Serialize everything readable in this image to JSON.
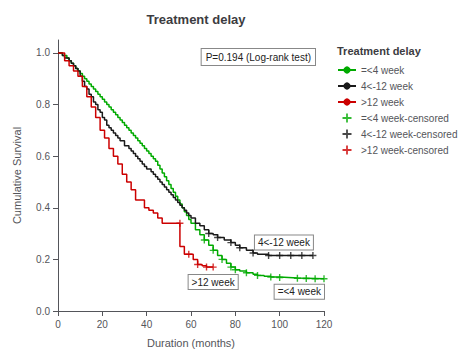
{
  "chart_data": {
    "type": "line",
    "title": "Treatment delay",
    "xlabel": "Duration (months)",
    "ylabel": "Cumulative Survival",
    "legend_title": "Treatment delay",
    "legend": "right",
    "grid": false,
    "xlim": [
      0,
      120
    ],
    "ylim": [
      0.0,
      1.05
    ],
    "xticks": [
      0,
      20,
      40,
      60,
      80,
      100,
      120
    ],
    "yticks": [
      {
        "value": 0.0,
        "label": "0.0"
      },
      0.2,
      0.4,
      0.6,
      0.8,
      {
        "value": 1.0,
        "label": "1.0"
      }
    ],
    "annotations": [
      {
        "text": "P=0.194 (Log-rank test)"
      }
    ],
    "series": [
      {
        "name": "=<4 week",
        "type": "line",
        "line_style": "step",
        "color": "#00aa00",
        "annotation": "=<4 week",
        "x": [
          0,
          2,
          4,
          5,
          6,
          7,
          8,
          9,
          10,
          11,
          12,
          13,
          14,
          15,
          16,
          17,
          18,
          19,
          20,
          21,
          22,
          23,
          24,
          25,
          26,
          27,
          28,
          29,
          30,
          31,
          32,
          33,
          34,
          35,
          36,
          37,
          38,
          39,
          40,
          41,
          42,
          43,
          44,
          45,
          46,
          47,
          48,
          49,
          50,
          51,
          52,
          53,
          54,
          55,
          56,
          57,
          58,
          59,
          60,
          62,
          64,
          66,
          68,
          70,
          72,
          74,
          76,
          78,
          80,
          82,
          85,
          88,
          90,
          93,
          96,
          100,
          104,
          108,
          112,
          116,
          120
        ],
        "values": [
          1.0,
          0.99,
          0.98,
          0.97,
          0.96,
          0.95,
          0.94,
          0.93,
          0.92,
          0.91,
          0.9,
          0.89,
          0.88,
          0.87,
          0.86,
          0.85,
          0.84,
          0.83,
          0.82,
          0.81,
          0.8,
          0.79,
          0.78,
          0.77,
          0.76,
          0.75,
          0.74,
          0.73,
          0.72,
          0.71,
          0.7,
          0.69,
          0.68,
          0.67,
          0.66,
          0.65,
          0.64,
          0.63,
          0.62,
          0.61,
          0.6,
          0.59,
          0.58,
          0.565,
          0.55,
          0.535,
          0.52,
          0.505,
          0.49,
          0.475,
          0.46,
          0.445,
          0.43,
          0.415,
          0.4,
          0.385,
          0.37,
          0.355,
          0.34,
          0.315,
          0.295,
          0.275,
          0.255,
          0.235,
          0.215,
          0.2,
          0.185,
          0.17,
          0.16,
          0.155,
          0.148,
          0.142,
          0.138,
          0.135,
          0.132,
          0.13,
          0.128,
          0.127,
          0.126,
          0.125,
          0.125
        ]
      },
      {
        "name": "4<-12 week",
        "type": "line",
        "line_style": "step",
        "color": "#1a1a1a",
        "annotation": "4<-12 week",
        "x": [
          0,
          2,
          3,
          5,
          6,
          7,
          8,
          9,
          10,
          11,
          12,
          13,
          14,
          15,
          16,
          17,
          18,
          19,
          20,
          21,
          22,
          23,
          24,
          25,
          26,
          27,
          28,
          30,
          32,
          33,
          34,
          35,
          36,
          37,
          38,
          39,
          40,
          42,
          43,
          44,
          45,
          46,
          47,
          48,
          49,
          50,
          51,
          52,
          53,
          54,
          55,
          56,
          57,
          58,
          59,
          60,
          62,
          64,
          66,
          68,
          70,
          72,
          75,
          78,
          80,
          82,
          85,
          88,
          90,
          95,
          100,
          105,
          110,
          115
        ],
        "values": [
          1.0,
          0.99,
          0.98,
          0.97,
          0.96,
          0.95,
          0.94,
          0.93,
          0.91,
          0.89,
          0.87,
          0.86,
          0.84,
          0.83,
          0.81,
          0.8,
          0.78,
          0.77,
          0.75,
          0.74,
          0.72,
          0.71,
          0.7,
          0.69,
          0.68,
          0.67,
          0.66,
          0.64,
          0.63,
          0.62,
          0.61,
          0.6,
          0.59,
          0.58,
          0.57,
          0.56,
          0.55,
          0.54,
          0.53,
          0.52,
          0.51,
          0.5,
          0.49,
          0.48,
          0.47,
          0.46,
          0.45,
          0.44,
          0.43,
          0.42,
          0.41,
          0.4,
          0.39,
          0.38,
          0.37,
          0.36,
          0.34,
          0.33,
          0.315,
          0.3,
          0.295,
          0.285,
          0.275,
          0.265,
          0.255,
          0.245,
          0.235,
          0.225,
          0.22,
          0.215,
          0.215,
          0.215,
          0.215,
          0.215
        ]
      },
      {
        "name": ">12 week",
        "type": "line",
        "line_style": "step",
        "color": "#cc0000",
        "annotation": ">12 week",
        "x": [
          0,
          3,
          5,
          7,
          9,
          11,
          13,
          15,
          17,
          19,
          21,
          23,
          25,
          27,
          29,
          31,
          33,
          35,
          37,
          39,
          41,
          43,
          45,
          47,
          49,
          51,
          53,
          55,
          57,
          59,
          61,
          63,
          65,
          67,
          70
        ],
        "values": [
          1.0,
          0.97,
          0.95,
          0.93,
          0.91,
          0.87,
          0.83,
          0.79,
          0.75,
          0.7,
          0.67,
          0.63,
          0.6,
          0.57,
          0.53,
          0.5,
          0.47,
          0.43,
          0.43,
          0.4,
          0.39,
          0.38,
          0.36,
          0.34,
          0.34,
          0.34,
          0.34,
          0.25,
          0.22,
          0.22,
          0.2,
          0.18,
          0.175,
          0.17,
          0.17
        ]
      },
      {
        "name": "=<4 week-censored",
        "type": "scatter",
        "marker": "+",
        "color": "#00aa00",
        "x": [
          66,
          70,
          74,
          78,
          80,
          85,
          90,
          96,
          100,
          108,
          112,
          116,
          120
        ],
        "values": [
          0.275,
          0.235,
          0.2,
          0.17,
          0.16,
          0.148,
          0.138,
          0.132,
          0.13,
          0.127,
          0.126,
          0.125,
          0.125
        ]
      },
      {
        "name": "4<-12 week-censored",
        "type": "scatter",
        "marker": "+",
        "color": "#1a1a1a",
        "x": [
          68,
          72,
          78,
          82,
          88,
          95,
          100,
          105,
          110,
          115
        ],
        "values": [
          0.3,
          0.285,
          0.265,
          0.245,
          0.225,
          0.215,
          0.215,
          0.215,
          0.215,
          0.215
        ]
      },
      {
        "name": ">12 week-censored",
        "type": "scatter",
        "marker": "+",
        "color": "#cc0000",
        "x": [
          55,
          59,
          63,
          67,
          70
        ],
        "values": [
          0.34,
          0.22,
          0.18,
          0.17,
          0.17
        ]
      }
    ]
  }
}
